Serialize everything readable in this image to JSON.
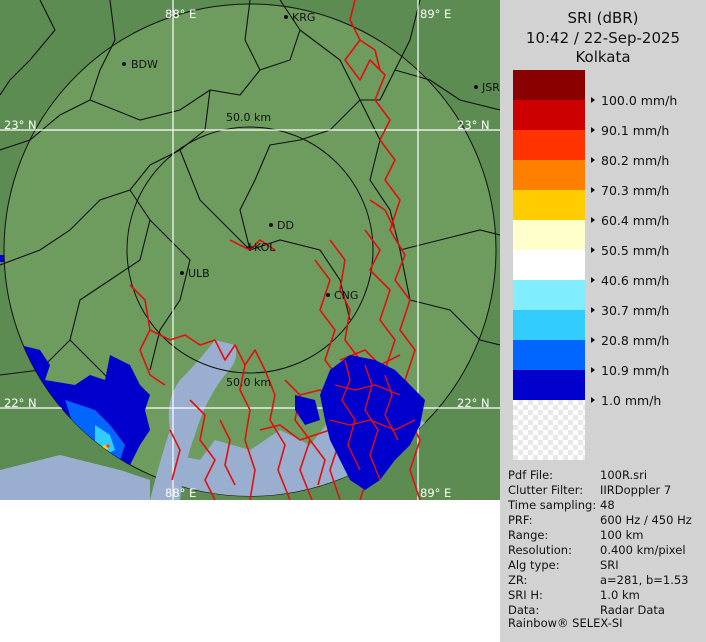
{
  "product": "SRI (dBR)",
  "timestamp": "10:42 / 22-Sep-2025",
  "site": "Kolkata",
  "legend": [
    {
      "label": "100.0 mm/h",
      "color": "#8a0000"
    },
    {
      "label": "90.1 mm/h",
      "color": "#cc0000"
    },
    {
      "label": "80.2 mm/h",
      "color": "#ff3300"
    },
    {
      "label": "70.3 mm/h",
      "color": "#ff8000"
    },
    {
      "label": "60.4 mm/h",
      "color": "#ffcc00"
    },
    {
      "label": "50.5 mm/h",
      "color": "#ffffcc"
    },
    {
      "label": "40.6 mm/h",
      "color": "#ffffff"
    },
    {
      "label": "30.7 mm/h",
      "color": "#80eeff"
    },
    {
      "label": "20.8 mm/h",
      "color": "#33ccff"
    },
    {
      "label": "10.9 mm/h",
      "color": "#0066ff"
    },
    {
      "label": "1.0 mm/h",
      "color": "#0000cc"
    }
  ],
  "info": [
    {
      "key": "Pdf File:",
      "value": "100R.sri"
    },
    {
      "key": "Clutter Filter:",
      "value": "IIRDoppler 7"
    },
    {
      "key": "Time sampling:",
      "value": "48"
    },
    {
      "key": "PRF:",
      "value": "600 Hz / 450 Hz"
    },
    {
      "key": "Range:",
      "value": "100 km"
    },
    {
      "key": "Resolution:",
      "value": "0.400 km/pixel"
    },
    {
      "key": "Alg type:",
      "value": "SRI"
    },
    {
      "key": "ZR:",
      "value": "a=281, b=1.53"
    },
    {
      "key": "SRI H:",
      "value": "1.0 km"
    },
    {
      "key": "Data:",
      "value": "Radar Data"
    }
  ],
  "footer": "Rainbow® SELEX-SI",
  "map": {
    "grid_labels": {
      "lon_left": "88° E",
      "lon_right": "89° E",
      "lat_top_left": "23° N",
      "lat_top_right": "23° N",
      "lat_bottom_left": "22° N",
      "lat_bottom_right": "22° N"
    },
    "range_labels": {
      "inner_top": "50.0 km",
      "inner_bottom": "50.0 km"
    },
    "places": [
      {
        "name": "KRG"
      },
      {
        "name": "BDW"
      },
      {
        "name": "JSR"
      },
      {
        "name": "DD"
      },
      {
        "name": "KOL"
      },
      {
        "name": "ULB"
      },
      {
        "name": "CNG"
      }
    ],
    "colors": {
      "land": "#6c9a5c",
      "outside": "#5a8a50",
      "water": "#9aaecf",
      "border": "#111111",
      "rivers": "#e01010",
      "rain_light": "#0000cc",
      "rain_mod": "#0066ff"
    }
  }
}
